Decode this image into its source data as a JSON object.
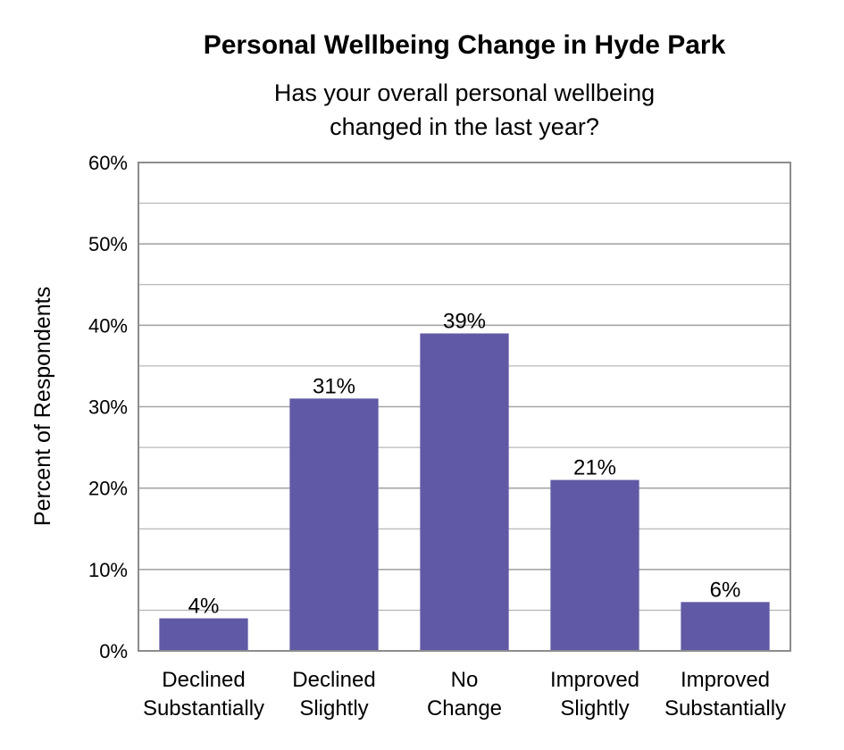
{
  "chart_data": {
    "type": "bar",
    "title": "Personal Wellbeing Change in Hyde Park",
    "subtitle": [
      "Has your overall personal wellbeing",
      "changed in the last year?"
    ],
    "xlabel": "",
    "ylabel": "Percent of Respondents",
    "categories": [
      [
        "Declined",
        "Substantially"
      ],
      [
        "Declined",
        "Slightly"
      ],
      [
        "No",
        "Change"
      ],
      [
        "Improved",
        "Slightly"
      ],
      [
        "Improved",
        "Substantially"
      ]
    ],
    "values": [
      4,
      31,
      39,
      21,
      6
    ],
    "data_labels": [
      "4%",
      "31%",
      "39%",
      "21%",
      "6%"
    ],
    "ylim": [
      0,
      60
    ],
    "yticks": [
      0,
      10,
      20,
      30,
      40,
      50,
      60
    ],
    "ytick_labels": [
      "0%",
      "10%",
      "20%",
      "30%",
      "40%",
      "50%",
      "60%"
    ],
    "grid": true,
    "legend": "none",
    "colors": {
      "bar": "#6059a5",
      "grid": "#a6a6a6",
      "frame": "#8c8c8c"
    }
  }
}
